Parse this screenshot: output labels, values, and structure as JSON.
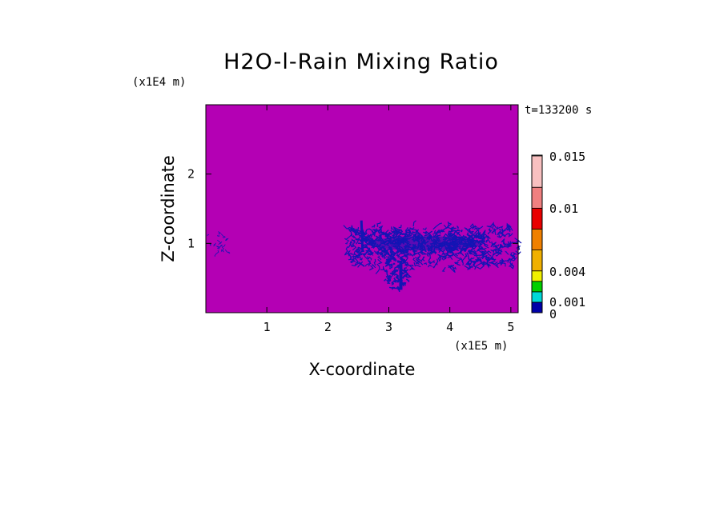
{
  "chart_data": {
    "type": "heatmap",
    "title": "H2O-l-Rain Mixing Ratio",
    "xlabel": "X-coordinate",
    "ylabel": "Z-coordinate",
    "x_multiplier": "(x1E5 m)",
    "y_multiplier": "(x1E4 m)",
    "time_label": "t=133200 s",
    "xlim": [
      0,
      5.12
    ],
    "ylim": [
      0,
      3.0
    ],
    "xticks": [
      1,
      2,
      3,
      4,
      5
    ],
    "yticks": [
      1,
      2
    ],
    "background_level": 0,
    "colorbar": {
      "levels": [
        0,
        0.001,
        0.002,
        0.003,
        0.004,
        0.006,
        0.008,
        0.01,
        0.012,
        0.015
      ],
      "tick_labels": [
        {
          "value": 0,
          "label": "0"
        },
        {
          "value": 0.001,
          "label": "0.001"
        },
        {
          "value": 0.004,
          "label": "0.004"
        },
        {
          "value": 0.01,
          "label": "0.01"
        },
        {
          "value": 0.015,
          "label": "0.015"
        }
      ],
      "colors": [
        "#0000a8",
        "#0030e0",
        "#00d8d8",
        "#00d000",
        "#f0f000",
        "#f0b000",
        "#f08000",
        "#e80000",
        "#f08080",
        "#f8c0c0"
      ]
    },
    "colors": {
      "field_background": "#b400b4",
      "rain_contours": "#1414b4"
    },
    "features": [
      {
        "name": "left-rain-patch",
        "x": [
          0.05,
          0.35
        ],
        "z": [
          0.9,
          1.15
        ]
      },
      {
        "name": "main-rain-band",
        "x": [
          2.35,
          5.12
        ],
        "z": [
          0.65,
          1.25
        ]
      },
      {
        "name": "rain-shaft",
        "x": [
          2.95,
          3.3
        ],
        "z": [
          0.33,
          0.9
        ]
      }
    ]
  }
}
